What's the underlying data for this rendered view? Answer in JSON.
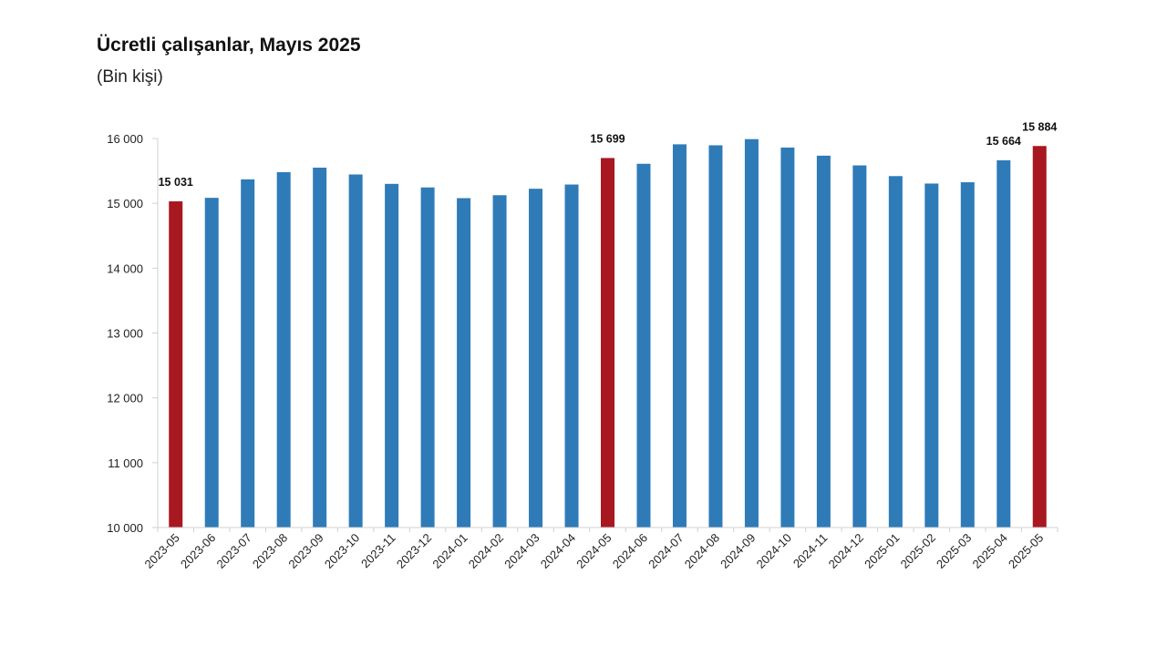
{
  "title": "Ücretli çalışanlar, Mayıs 2025",
  "subtitle": "(Bin kişi)",
  "chart_data": {
    "type": "bar",
    "title": "Ücretli çalışanlar, Mayıs 2025",
    "subtitle": "(Bin kişi)",
    "xlabel": "",
    "ylabel": "",
    "ylim": [
      10000,
      16000
    ],
    "yticks": [
      10000,
      11000,
      12000,
      13000,
      14000,
      15000,
      16000
    ],
    "ytick_labels": [
      "10 000",
      "11 000",
      "12 000",
      "13 000",
      "14 000",
      "15 000",
      "16 000"
    ],
    "grid": false,
    "categories": [
      "2023-05",
      "2023-06",
      "2023-07",
      "2023-08",
      "2023-09",
      "2023-10",
      "2023-11",
      "2023-12",
      "2024-01",
      "2024-02",
      "2024-03",
      "2024-04",
      "2024-05",
      "2024-06",
      "2024-07",
      "2024-08",
      "2024-09",
      "2024-10",
      "2024-11",
      "2024-12",
      "2025-01",
      "2025-02",
      "2025-03",
      "2025-04",
      "2025-05"
    ],
    "values": [
      15031,
      15085,
      15370,
      15480,
      15550,
      15445,
      15300,
      15245,
      15080,
      15125,
      15225,
      15290,
      15699,
      15610,
      15910,
      15895,
      15990,
      15860,
      15735,
      15585,
      15420,
      15305,
      15325,
      15664,
      15884
    ],
    "bar_colors": [
      "#a81820",
      "#2e7bb8",
      "#2e7bb8",
      "#2e7bb8",
      "#2e7bb8",
      "#2e7bb8",
      "#2e7bb8",
      "#2e7bb8",
      "#2e7bb8",
      "#2e7bb8",
      "#2e7bb8",
      "#2e7bb8",
      "#a81820",
      "#2e7bb8",
      "#2e7bb8",
      "#2e7bb8",
      "#2e7bb8",
      "#2e7bb8",
      "#2e7bb8",
      "#2e7bb8",
      "#2e7bb8",
      "#2e7bb8",
      "#2e7bb8",
      "#2e7bb8",
      "#a81820"
    ],
    "data_labels": [
      {
        "index": 0,
        "text": "15 031"
      },
      {
        "index": 12,
        "text": "15 699"
      },
      {
        "index": 23,
        "text": "15 664"
      },
      {
        "index": 24,
        "text": "15 884"
      }
    ],
    "colors": {
      "highlight": "#a81820",
      "default": "#2e7bb8",
      "axis": "#d0d0d0"
    }
  }
}
